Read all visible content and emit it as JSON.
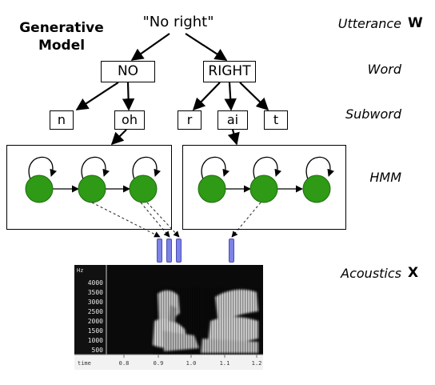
{
  "model_title": "Generative\nModel",
  "utterance": "\"No right\"",
  "levels": {
    "utterance": {
      "label": "Utterance",
      "symbol": "W"
    },
    "word": {
      "label": "Word"
    },
    "subword": {
      "label": "Subword"
    },
    "hmm": {
      "label": "HMM"
    },
    "acoustics": {
      "label": "Acoustics",
      "symbol": "X"
    }
  },
  "words": [
    "NO",
    "RIGHT"
  ],
  "subwords": [
    "n",
    "oh",
    "r",
    "ai",
    "t"
  ],
  "colors": {
    "state": "#2e9a16",
    "frame": "#7d82e8"
  },
  "spectrogram": {
    "unit_label": "Hz",
    "y_ticks": [
      "4000",
      "3500",
      "3000",
      "2500",
      "2000",
      "1500",
      "1000",
      "500"
    ],
    "time_label": "time",
    "x_ticks": [
      "0.8",
      "0.9",
      "1.0",
      "1.1",
      "1.2"
    ]
  }
}
